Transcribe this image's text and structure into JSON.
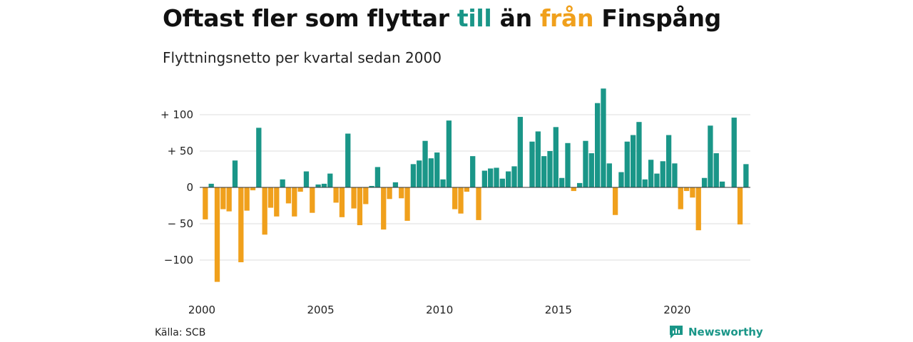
{
  "header": {
    "title_pre": "Oftast fler som flyttar ",
    "title_till": "till",
    "title_mid": " än ",
    "title_fran": "från",
    "title_post": " Finspång",
    "subtitle": "Flyttningsnetto per kvartal sedan 2000"
  },
  "footer": {
    "source": "Källa: SCB",
    "brand": "Newsworthy"
  },
  "colors": {
    "positive": "#1a9688",
    "negative": "#f0a01c",
    "grid": "#dddddd"
  },
  "chart_data": {
    "type": "bar",
    "title": "Oftast fler som flyttar till än från Finspång",
    "subtitle": "Flyttningsnetto per kvartal sedan 2000",
    "xlabel": "",
    "ylabel": "",
    "ylim": [
      -130,
      140
    ],
    "yticks": [
      100,
      50,
      0,
      -50,
      -100
    ],
    "ytick_labels": [
      "+ 100",
      "+  50",
      "0",
      "− 50",
      "−100"
    ],
    "xticks": [
      "2000",
      "2005",
      "2010",
      "2015",
      "2020"
    ],
    "x_start": "2000 Q1",
    "grid": true,
    "values": [
      -44,
      5,
      -130,
      -30,
      -33,
      37,
      -103,
      -32,
      -4,
      82,
      -65,
      -28,
      -40,
      11,
      -22,
      -40,
      -6,
      22,
      -35,
      4,
      5,
      19,
      -21,
      -41,
      74,
      -29,
      -52,
      -23,
      2,
      28,
      -58,
      -16,
      7,
      -15,
      -46,
      32,
      37,
      64,
      40,
      48,
      11,
      92,
      -30,
      -36,
      -6,
      43,
      -45,
      23,
      26,
      27,
      12,
      22,
      29,
      97,
      0,
      63,
      77,
      43,
      50,
      83,
      13,
      61,
      -5,
      6,
      64,
      47,
      116,
      136,
      33,
      -38,
      21,
      63,
      72,
      90,
      11,
      38,
      19,
      36,
      72,
      33,
      -30,
      -5,
      -14,
      -59,
      13,
      85,
      47,
      8,
      0,
      96,
      -51,
      32
    ]
  }
}
